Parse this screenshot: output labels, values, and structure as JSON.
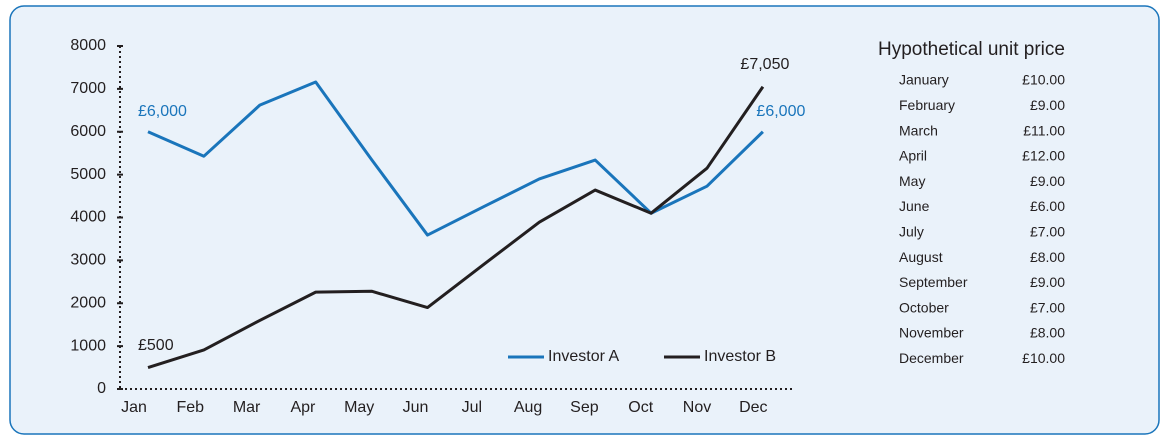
{
  "chart_data": {
    "type": "line",
    "categories": [
      "Jan",
      "Feb",
      "Mar",
      "Apr",
      "May",
      "Jun",
      "Jul",
      "Aug",
      "Sep",
      "Oct",
      "Nov",
      "Dec"
    ],
    "series": [
      {
        "name": "Investor A",
        "color": "#1a75bb",
        "values": [
          6000,
          5430,
          6620,
          7160,
          5350,
          3590,
          4250,
          4900,
          5340,
          4100,
          4730,
          6000
        ]
      },
      {
        "name": "Investor B",
        "color": "#231f20",
        "values": [
          500,
          910,
          1600,
          2260,
          2280,
          1900,
          2900,
          3890,
          4640,
          4100,
          5150,
          7050
        ]
      }
    ],
    "annotations": [
      "£6,000",
      "£6,000",
      "£500",
      "£7,050"
    ],
    "ylim": [
      0,
      8000
    ],
    "yticks": [
      0,
      1000,
      2000,
      3000,
      4000,
      5000,
      6000,
      7000,
      8000
    ]
  },
  "table": {
    "title": "Hypothetical unit price",
    "rows": [
      [
        "January",
        "£10.00"
      ],
      [
        "February",
        "£9.00"
      ],
      [
        "March",
        "£11.00"
      ],
      [
        "April",
        "£12.00"
      ],
      [
        "May",
        "£9.00"
      ],
      [
        "June",
        "£6.00"
      ],
      [
        "July",
        "£7.00"
      ],
      [
        "August",
        "£8.00"
      ],
      [
        "September",
        "£9.00"
      ],
      [
        "October",
        "£7.00"
      ],
      [
        "November",
        "£8.00"
      ],
      [
        "December",
        "£10.00"
      ]
    ]
  }
}
